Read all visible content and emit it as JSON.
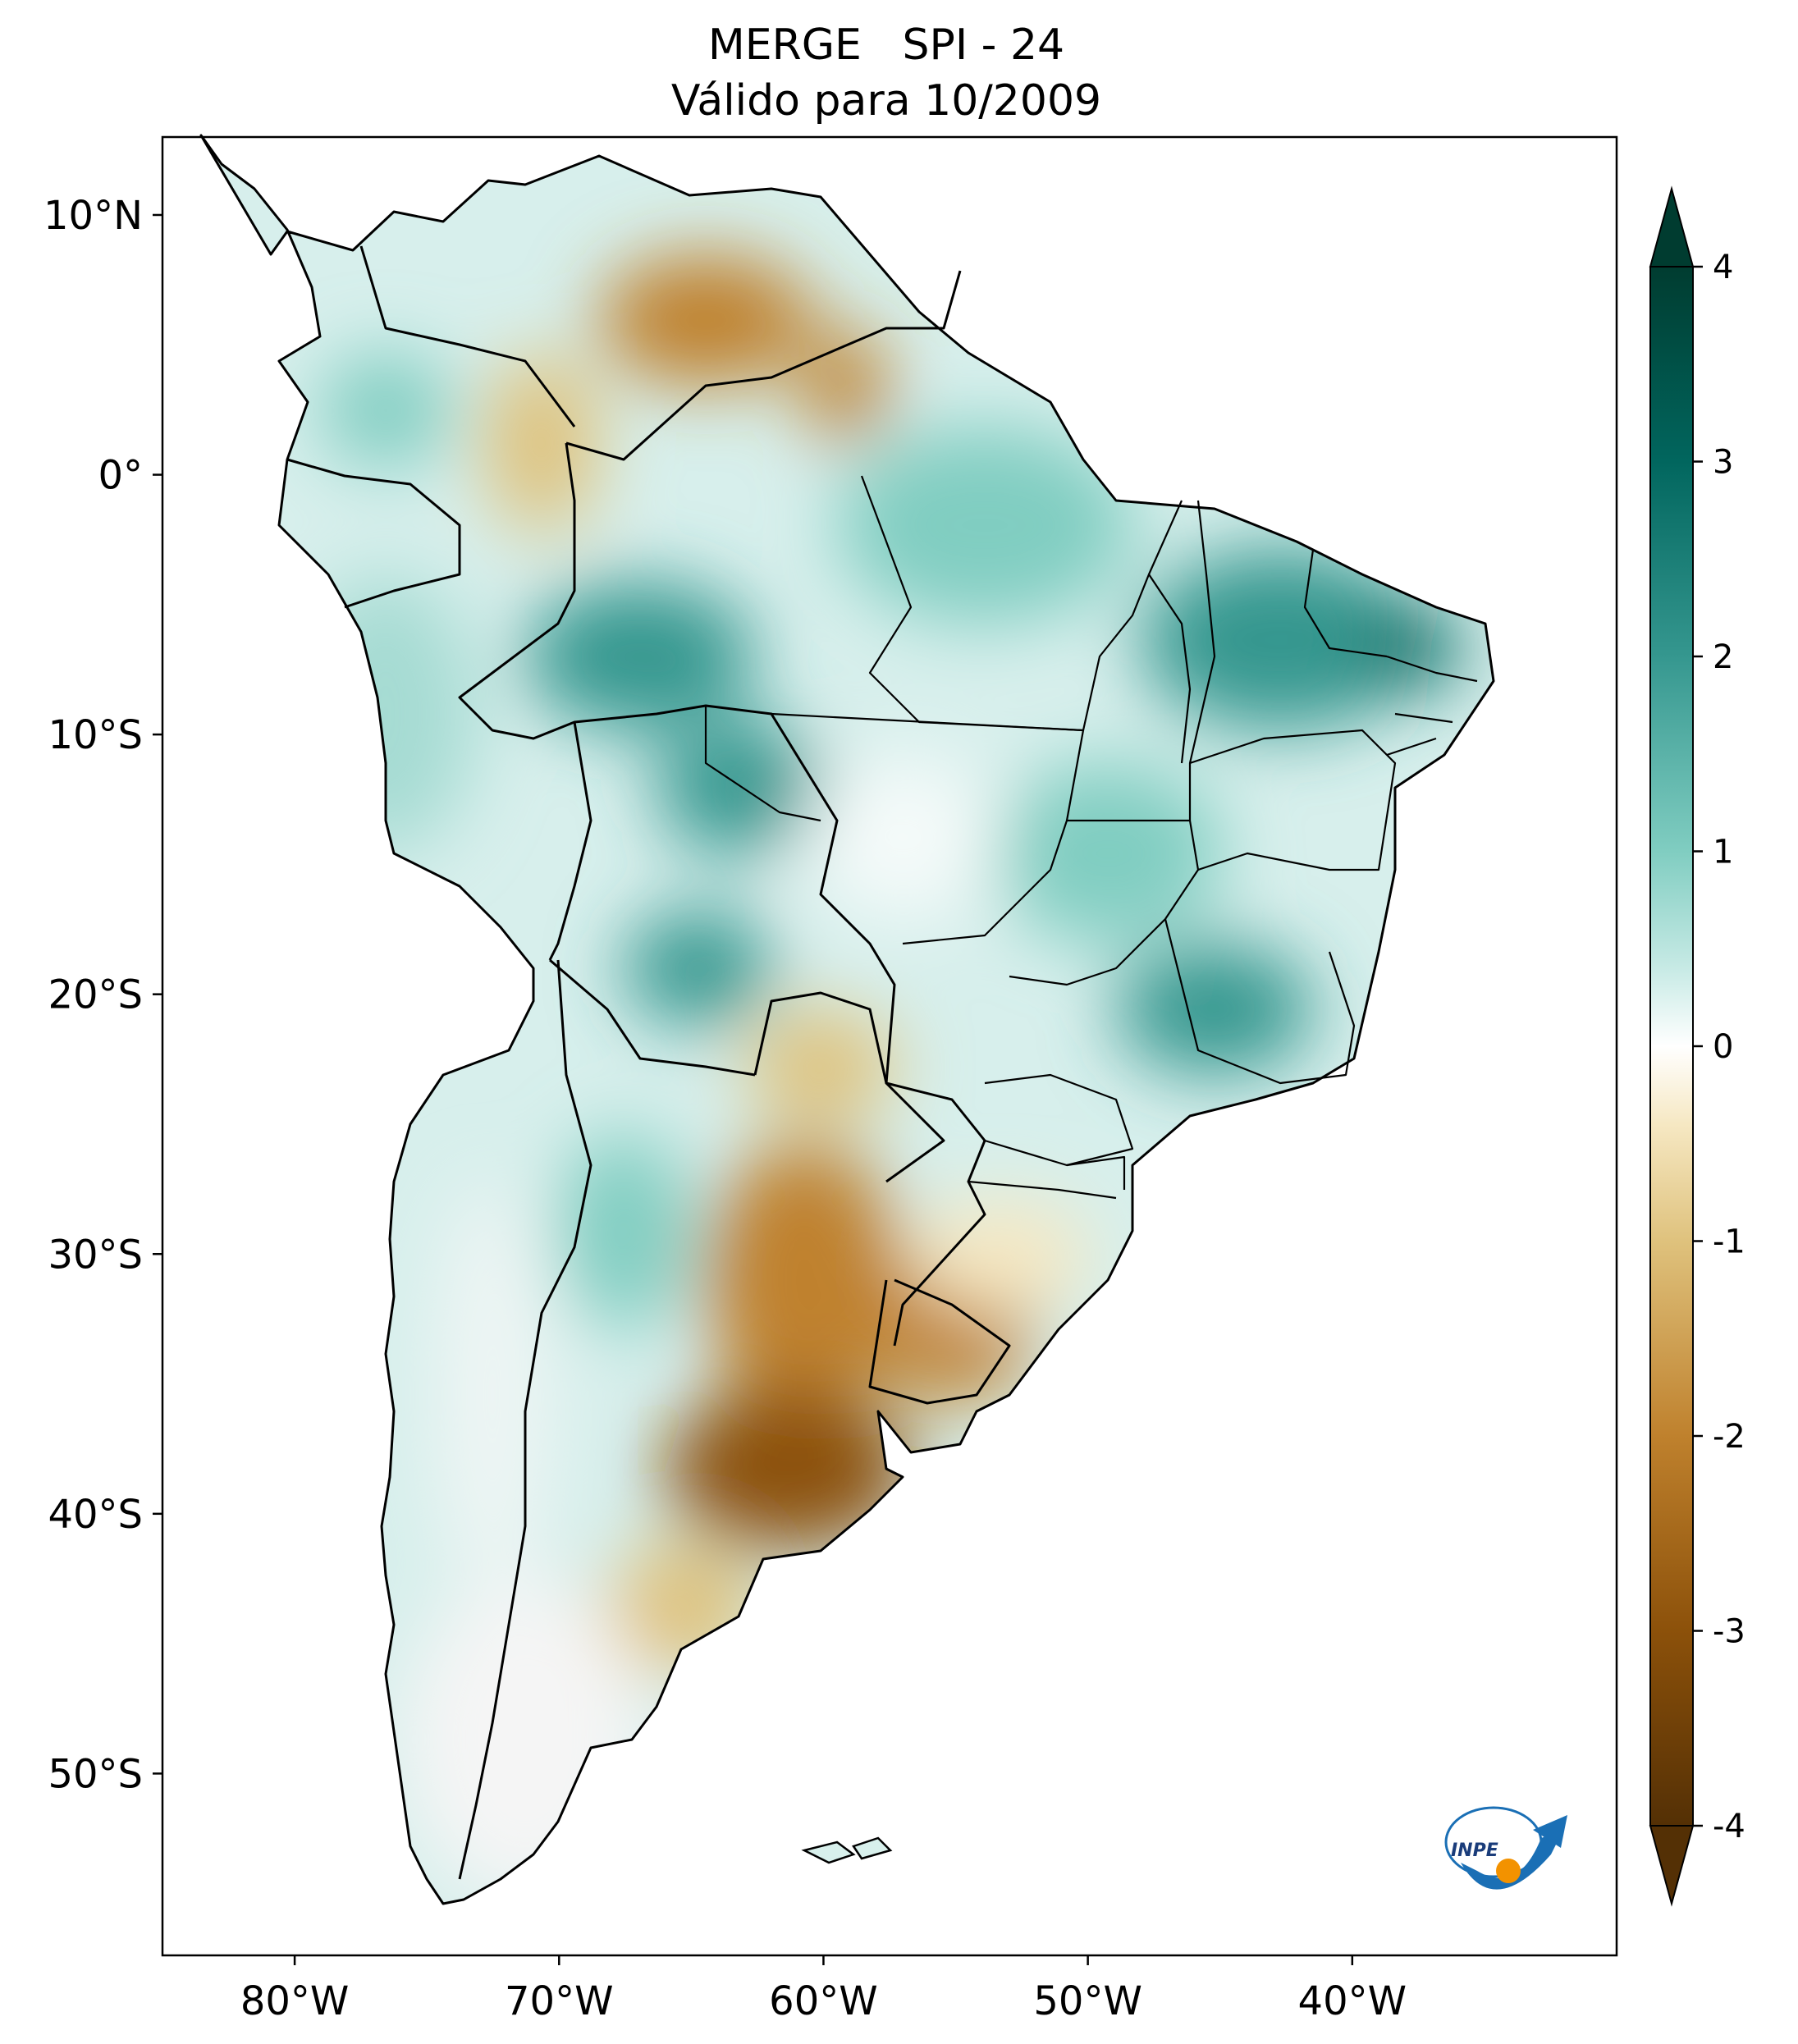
{
  "title": {
    "line1": "MERGE   SPI - 24",
    "line2": "Válido para 10/2009"
  },
  "map": {
    "lon_range": [
      -85,
      -30
    ],
    "lat_range": [
      -57,
      13
    ],
    "lon_ticks": [
      {
        "value": -80,
        "label": "80°W"
      },
      {
        "value": -70,
        "label": "70°W"
      },
      {
        "value": -60,
        "label": "60°W"
      },
      {
        "value": -50,
        "label": "50°W"
      },
      {
        "value": -40,
        "label": "40°W"
      }
    ],
    "lat_ticks": [
      {
        "value": 10,
        "label": "10°N"
      },
      {
        "value": 0,
        "label": "0°"
      },
      {
        "value": -10,
        "label": "10°S"
      },
      {
        "value": -20,
        "label": "20°S"
      },
      {
        "value": -30,
        "label": "30°S"
      },
      {
        "value": -40,
        "label": "40°S"
      },
      {
        "value": -50,
        "label": "50°S"
      }
    ]
  },
  "colorbar": {
    "range": [
      -4,
      4
    ],
    "extend": "both",
    "ticks": [
      "4",
      "3",
      "2",
      "1",
      "0",
      "-1",
      "-2",
      "-3",
      "-4"
    ],
    "colors": [
      "#543005",
      "#8c510a",
      "#bf812d",
      "#dfc27d",
      "#f6e8c3",
      "#ffffff",
      "#c7eae5",
      "#80cdc1",
      "#35978f",
      "#01665e",
      "#003c30"
    ]
  },
  "logo": {
    "text": "INPE",
    "colors": {
      "blue": "#1a6fb5",
      "orange": "#f39200"
    }
  }
}
